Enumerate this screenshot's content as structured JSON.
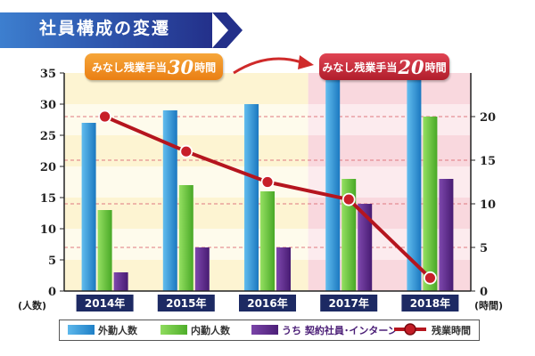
{
  "title": "社員構成の変遷",
  "callouts": [
    {
      "prefix": "みなし残業手当",
      "value": "30",
      "suffix": "時間"
    },
    {
      "prefix": "みなし残業手当",
      "value": "20",
      "suffix": "時間"
    }
  ],
  "colors": {
    "outside": "#2a93d8",
    "inside": "#6cc840",
    "contract": "#5c2a88",
    "overtime": "#b5151e"
  },
  "chart_data": {
    "type": "bar",
    "categories": [
      "2014年",
      "2015年",
      "2016年",
      "2017年",
      "2018年"
    ],
    "series": [
      {
        "name": "外勤人数",
        "type": "bar",
        "axis": "left",
        "values": [
          27,
          29,
          30,
          35,
          34
        ]
      },
      {
        "name": "内勤人数",
        "type": "bar",
        "axis": "left",
        "values": [
          13,
          17,
          16,
          18,
          28
        ]
      },
      {
        "name": "うち 契約社員･インターン",
        "type": "bar",
        "axis": "left",
        "values": [
          3,
          7,
          7,
          14,
          18
        ]
      },
      {
        "name": "残業時間",
        "type": "line",
        "axis": "right",
        "values": [
          20,
          16,
          12.5,
          10.5,
          1.5
        ]
      }
    ],
    "ylabel_left": "(人数)",
    "ylabel_right": "(時間)",
    "ylim_left": [
      0,
      35
    ],
    "ylim_right": [
      0,
      25
    ],
    "yticks_left": [
      0,
      5,
      10,
      15,
      20,
      25,
      30,
      35
    ],
    "yticks_right": [
      0,
      5,
      10,
      15,
      20
    ],
    "grid": true,
    "legend_position": "bottom"
  }
}
